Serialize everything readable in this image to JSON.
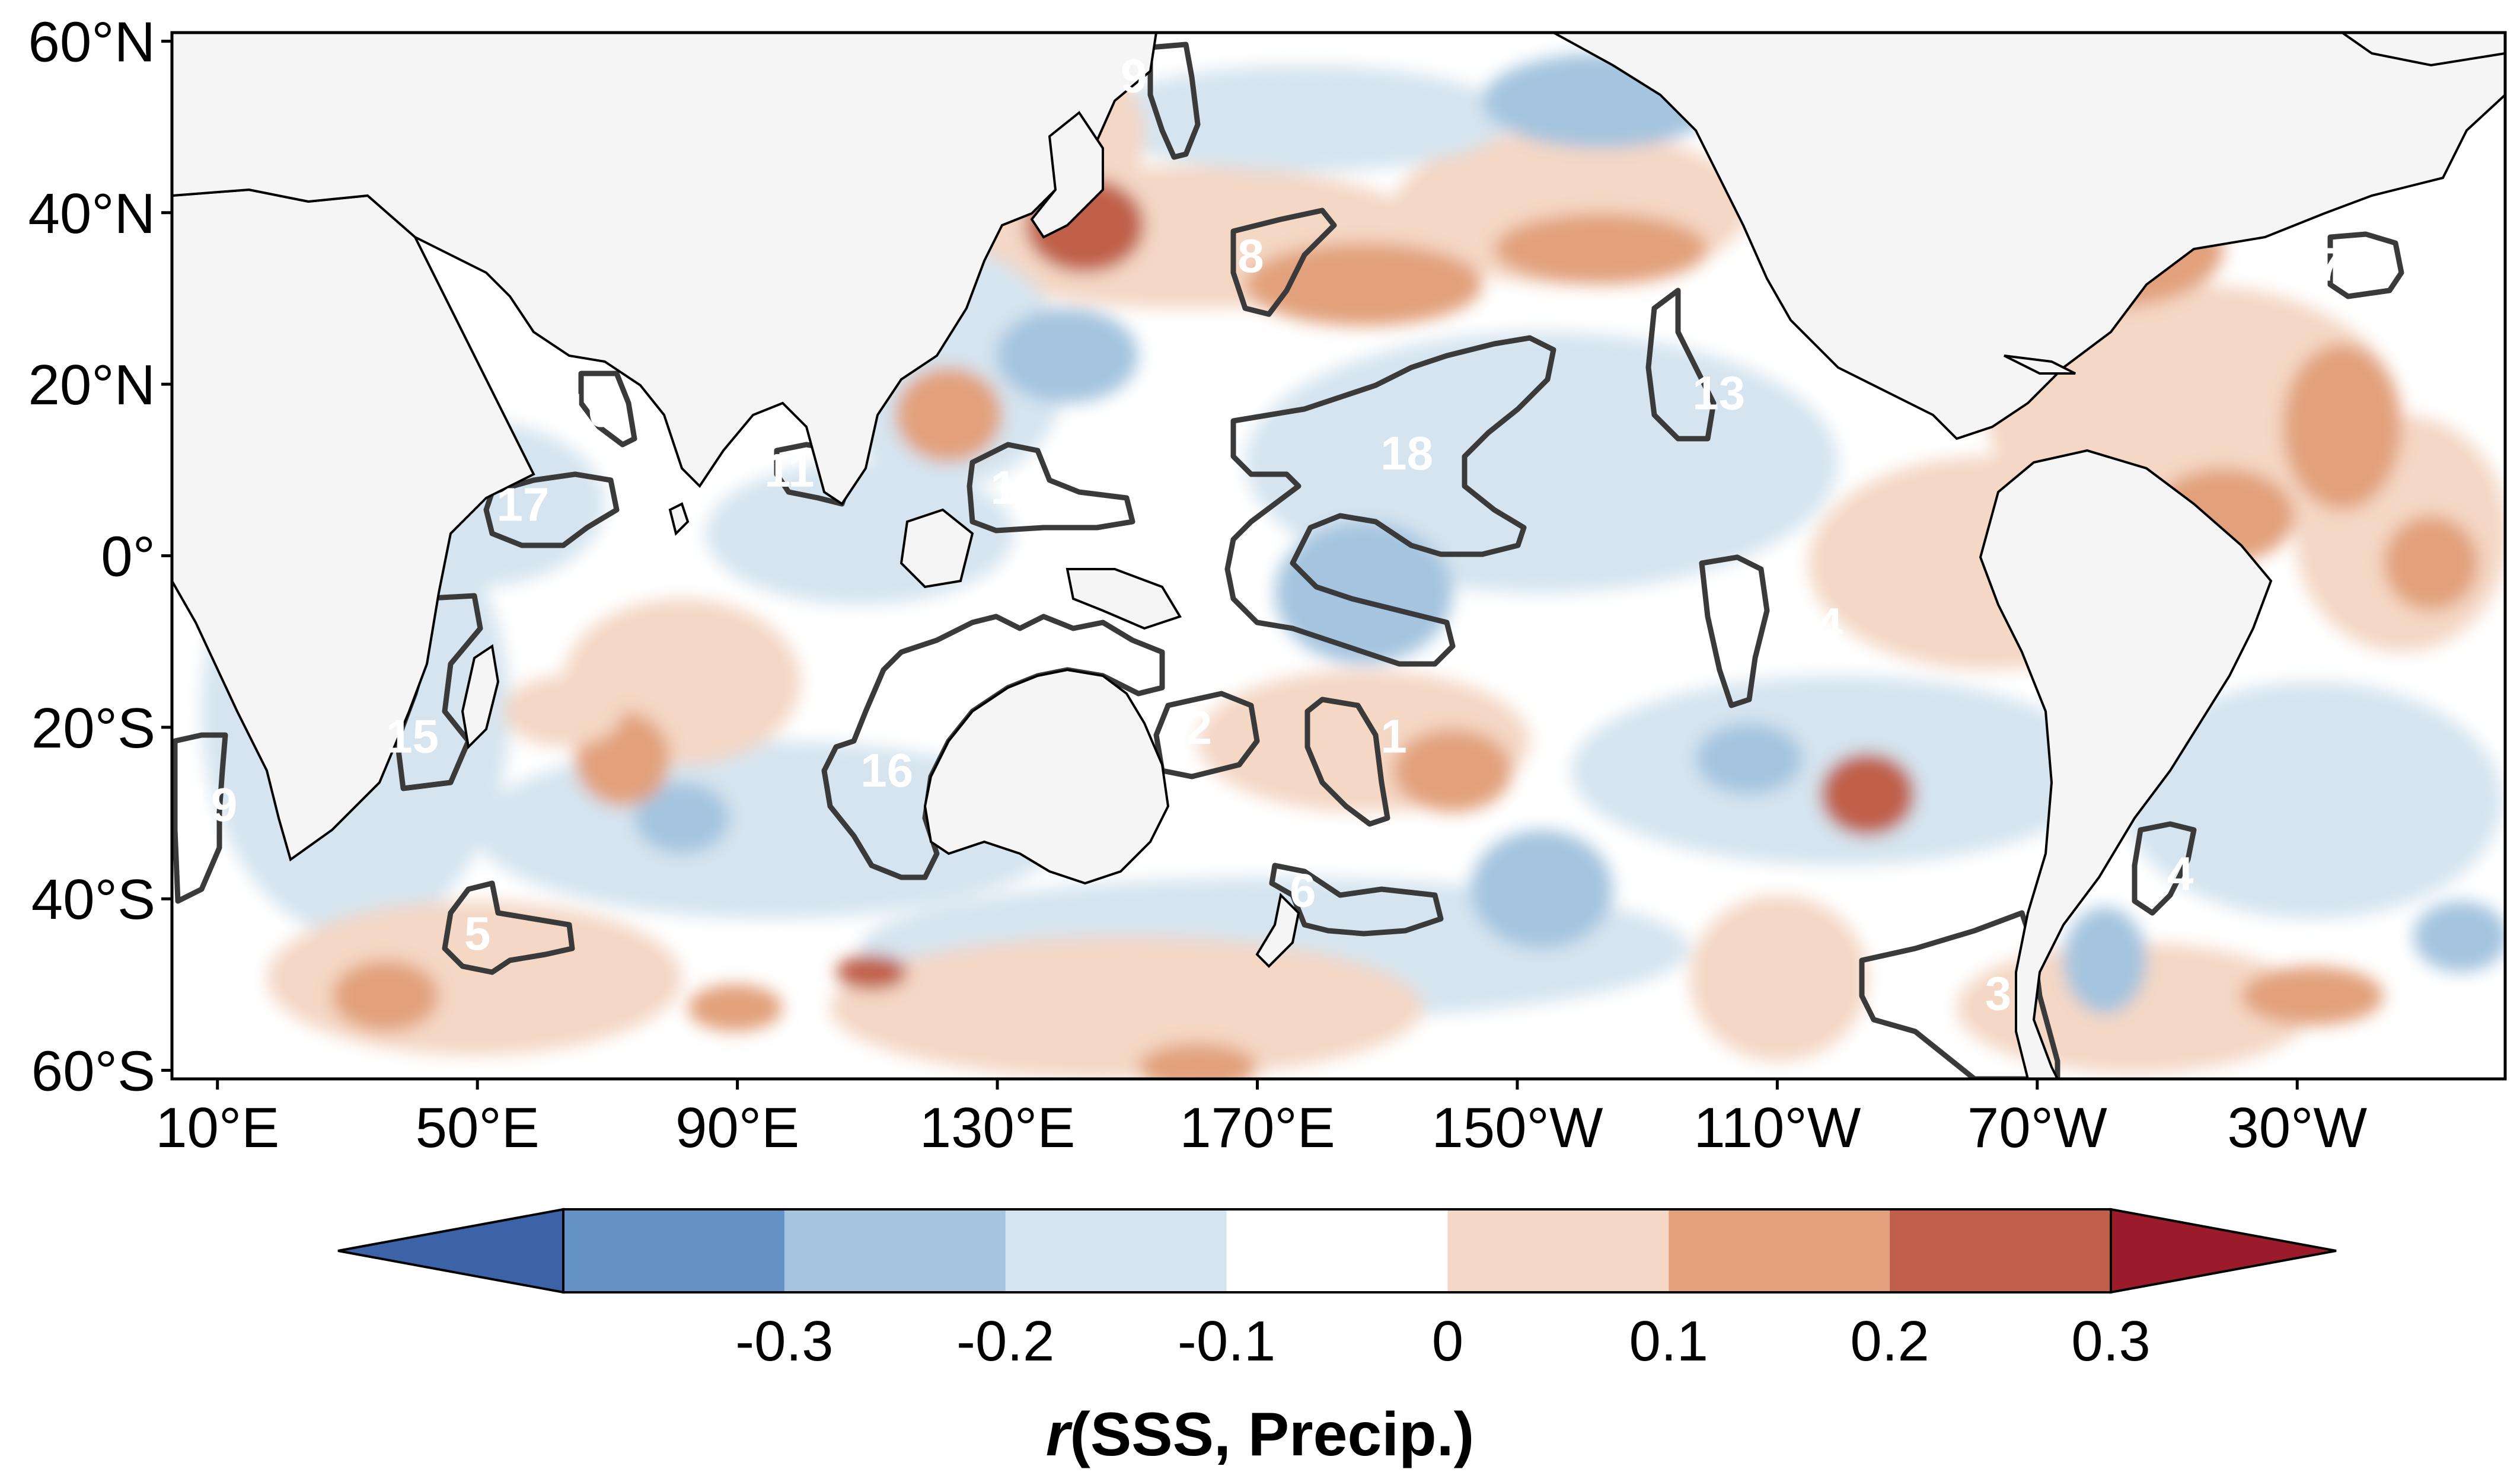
{
  "map": {
    "lat_labels": [
      {
        "text": "60°N",
        "lat": 60
      },
      {
        "text": "40°N",
        "lat": 40
      },
      {
        "text": "20°N",
        "lat": 20
      },
      {
        "text": "0°",
        "lat": 0
      },
      {
        "text": "20°S",
        "lat": -20
      },
      {
        "text": "40°S",
        "lat": -40
      },
      {
        "text": "60°S",
        "lat": -60
      }
    ],
    "lon_labels": [
      {
        "text": "10°E",
        "lon": 10
      },
      {
        "text": "50°E",
        "lon": 50
      },
      {
        "text": "90°E",
        "lon": 90
      },
      {
        "text": "130°E",
        "lon": 130
      },
      {
        "text": "170°E",
        "lon": 170
      },
      {
        "text": "150°W",
        "lon": 210
      },
      {
        "text": "110°W",
        "lon": 250
      },
      {
        "text": "70°W",
        "lon": 290
      },
      {
        "text": "30°W",
        "lon": 330
      }
    ],
    "regions": [
      {
        "id": "1",
        "lon": 191,
        "lat": -21,
        "sign": "pos"
      },
      {
        "id": "2",
        "lon": 161,
        "lat": -20,
        "sign": "pos"
      },
      {
        "id": "3",
        "lon": 284,
        "lat": -51,
        "sign": "neg"
      },
      {
        "id": "4",
        "lon": 312,
        "lat": -37,
        "sign": "neg"
      },
      {
        "id": "5",
        "lon": 50,
        "lat": -44,
        "sign": "neg"
      },
      {
        "id": "6",
        "lon": 177,
        "lat": -39,
        "sign": "neg"
      },
      {
        "id": "7",
        "lon": 335,
        "lat": 34,
        "sign": "pos"
      },
      {
        "id": "8",
        "lon": 169,
        "lat": 35,
        "sign": "pos"
      },
      {
        "id": "9",
        "lon": 151,
        "lat": 56,
        "sign": "neg"
      },
      {
        "id": "10",
        "lon": 67,
        "lat": 17,
        "sign": "neg"
      },
      {
        "id": "11",
        "lon": 98,
        "lat": 10,
        "sign": "neg"
      },
      {
        "id": "12",
        "lon": 133,
        "lat": 8,
        "sign": "pos"
      },
      {
        "id": "13",
        "lon": 241,
        "lat": 19,
        "sign": "neg"
      },
      {
        "id": "14",
        "lon": 256,
        "lat": -8,
        "sign": "pos"
      },
      {
        "id": "15",
        "lon": 40,
        "lat": -21,
        "sign": "neg"
      },
      {
        "id": "16",
        "lon": 113,
        "lat": -25,
        "sign": "pos"
      },
      {
        "id": "17",
        "lon": 57,
        "lat": 6,
        "sign": "neg"
      },
      {
        "id": "18",
        "lon": 193,
        "lat": 12,
        "sign": "neg"
      },
      {
        "id": "19",
        "lon": 9,
        "lat": -29,
        "sign": "neg"
      }
    ]
  },
  "colorbar": {
    "ticks": [
      "-0.3",
      "-0.2",
      "-0.1",
      "0",
      "0.1",
      "0.2",
      "0.3"
    ],
    "title": "r(SSS, Precip.)",
    "title_italic_part": "r",
    "title_rest": "(SSS, Precip.)",
    "colors": [
      "#3c62a8",
      "#6492c6",
      "#a4c4df",
      "#d5e4ef",
      "#ffffff",
      "#f4d7c5",
      "#e2a17c",
      "#c0604a",
      "#9b1b2a"
    ]
  }
}
